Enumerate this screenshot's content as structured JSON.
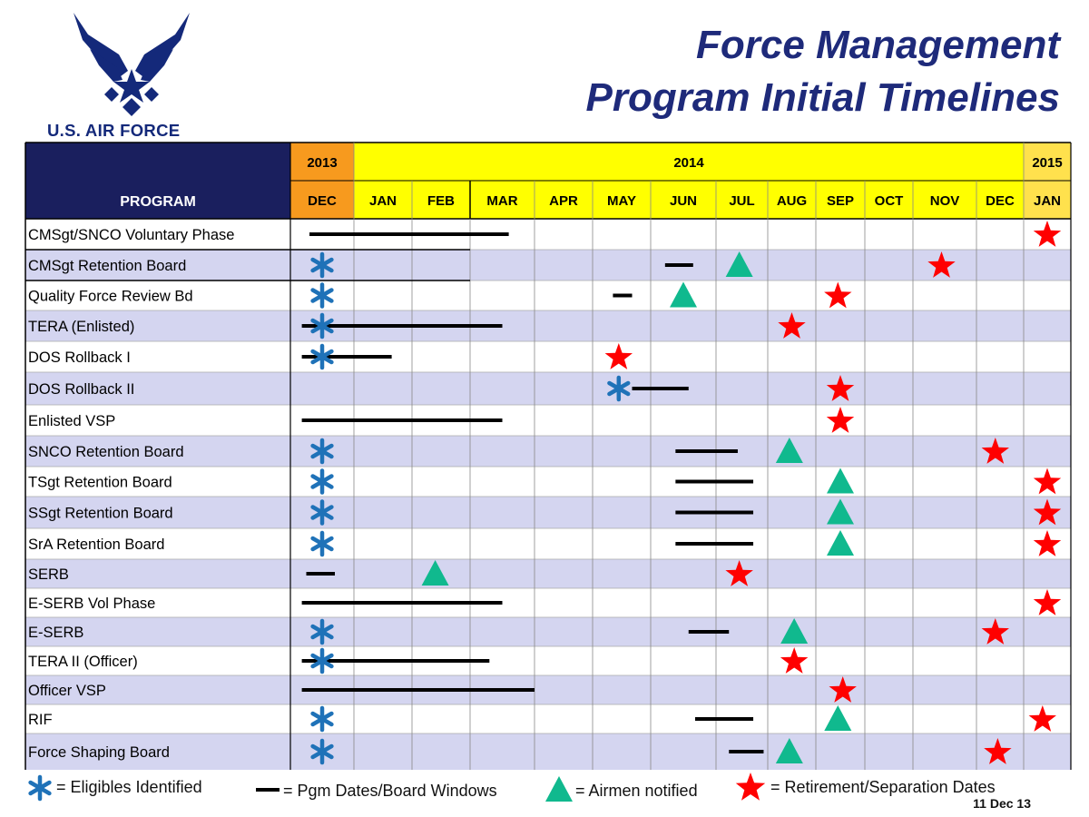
{
  "header": {
    "logo_text": "U.S. AIR FORCE",
    "title_line1": "Force Management",
    "title_line2": "Program Initial Timelines",
    "date": "11 Dec 13"
  },
  "colors": {
    "header_navy": "#1a1f5e",
    "year_2013": "#f79a1e",
    "year_2014": "#ffff00",
    "year_2015": "#ffe14d",
    "row_alt": "#d4d5f0",
    "star_red": "#ff0000",
    "triangle_green": "#10b98e",
    "asterisk_blue": "#1f72b8",
    "bar_black": "#000000"
  },
  "table": {
    "program_header": "PROGRAM",
    "years": [
      {
        "label": "2013",
        "span": 1
      },
      {
        "label": "2014",
        "span": 12
      },
      {
        "label": "2015",
        "span": 1
      }
    ],
    "months": [
      "DEC",
      "JAN",
      "FEB",
      "MAR",
      "APR",
      "MAY",
      "JUN",
      "JUL",
      "AUG",
      "SEP",
      "OCT",
      "NOV",
      "DEC",
      "JAN"
    ]
  },
  "programs": [
    {
      "name": "CMSgt/SNCO Voluntary Phase",
      "bars": [
        [
          0.3,
          3.6
        ]
      ],
      "asterisks": [],
      "triangles": [],
      "stars": [
        13.5
      ]
    },
    {
      "name": "CMSgt Retention Board",
      "bars": [
        [
          6.22,
          6.65
        ]
      ],
      "asterisks": [
        0.5
      ],
      "triangles": [
        7.45
      ],
      "stars": [
        11.45
      ]
    },
    {
      "name": "Quality Force Review Bd",
      "bars": [
        [
          5.35,
          5.68
        ]
      ],
      "asterisks": [
        0.5
      ],
      "triangles": [
        6.5
      ],
      "stars": [
        9.45
      ]
    },
    {
      "name": "TERA  (Enlisted)",
      "bars": [
        [
          0.18,
          3.5
        ]
      ],
      "asterisks": [
        0.5
      ],
      "triangles": [],
      "stars": [
        8.5
      ]
    },
    {
      "name": "DOS Rollback I",
      "bars": [
        [
          0.18,
          1.65
        ]
      ],
      "asterisks": [
        0.5
      ],
      "triangles": [],
      "stars": [
        5.45
      ]
    },
    {
      "name": "DOS Rollback II",
      "bars": [
        [
          5.68,
          6.58
        ]
      ],
      "asterisks": [
        5.45
      ],
      "triangles": [],
      "stars": [
        9.5
      ]
    },
    {
      "name": "Enlisted VSP",
      "bars": [
        [
          0.18,
          3.5
        ]
      ],
      "asterisks": [],
      "triangles": [],
      "stars": [
        9.5
      ]
    },
    {
      "name": "SNCO Retention Board",
      "bars": [
        [
          6.38,
          7.42
        ]
      ],
      "asterisks": [
        0.5
      ],
      "triangles": [
        8.45
      ],
      "stars": [
        12.4
      ]
    },
    {
      "name": "TSgt Retention Board",
      "bars": [
        [
          6.38,
          7.72
        ]
      ],
      "asterisks": [
        0.5
      ],
      "triangles": [
        9.5
      ],
      "stars": [
        13.5
      ]
    },
    {
      "name": "SSgt Retention Board",
      "bars": [
        [
          6.38,
          7.72
        ]
      ],
      "asterisks": [
        0.5
      ],
      "triangles": [
        9.5
      ],
      "stars": [
        13.5
      ]
    },
    {
      "name": "SrA Retention Board",
      "bars": [
        [
          6.38,
          7.72
        ]
      ],
      "asterisks": [
        0.5
      ],
      "triangles": [
        9.5
      ],
      "stars": [
        13.5
      ]
    },
    {
      "name": "SERB",
      "bars": [
        [
          0.25,
          0.7
        ]
      ],
      "asterisks": [],
      "triangles": [
        2.4
      ],
      "stars": [
        7.45
      ]
    },
    {
      "name": "E-SERB Vol Phase",
      "bars": [
        [
          0.18,
          3.5
        ]
      ],
      "asterisks": [],
      "triangles": [],
      "stars": [
        13.5
      ]
    },
    {
      "name": "E-SERB",
      "bars": [
        [
          6.58,
          7.25
        ]
      ],
      "asterisks": [
        0.5
      ],
      "triangles": [
        8.55
      ],
      "stars": [
        12.4
      ]
    },
    {
      "name": "TERA II (Officer)",
      "bars": [
        [
          0.18,
          3.3
        ]
      ],
      "asterisks": [
        0.5
      ],
      "triangles": [],
      "stars": [
        8.55
      ]
    },
    {
      "name": "Officer VSP",
      "bars": [
        [
          0.18,
          4.0
        ]
      ],
      "asterisks": [],
      "triangles": [],
      "stars": [
        9.55
      ]
    },
    {
      "name": "RIF",
      "bars": [
        [
          6.68,
          7.72
        ]
      ],
      "asterisks": [
        0.5
      ],
      "triangles": [
        9.45
      ],
      "stars": [
        13.4
      ]
    },
    {
      "name": "Force Shaping Board",
      "bars": [
        [
          7.25,
          7.92
        ]
      ],
      "asterisks": [
        0.5
      ],
      "triangles": [
        8.45
      ],
      "stars": [
        12.45
      ]
    }
  ],
  "legend": {
    "eligibles": "= Eligibles Identified",
    "pgm_dates": "= Pgm Dates/Board Windows",
    "notified": "= Airmen notified",
    "retirement": "= Retirement/Separation Dates"
  }
}
